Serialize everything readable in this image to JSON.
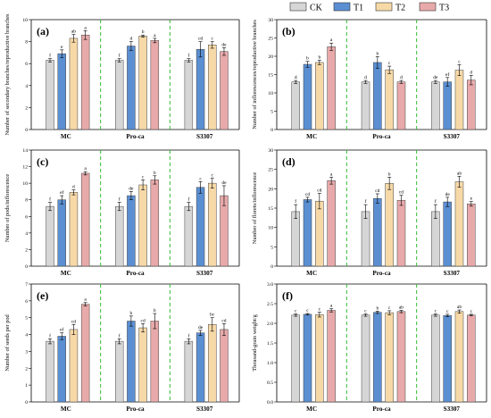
{
  "legend": {
    "items": [
      {
        "name": "CK",
        "color": "#d6d6d6"
      },
      {
        "name": "T1",
        "color": "#5b8fd2"
      },
      {
        "name": "T2",
        "color": "#f7d9a8"
      },
      {
        "name": "T3",
        "color": "#e8a9aa"
      }
    ]
  },
  "colors": {
    "divider": "#33bb33",
    "axis": "#000000",
    "error_bar": "#000000"
  },
  "chart_data": [
    {
      "type": "bar",
      "panel_label": "(a)",
      "ylabel": "Number of secondary branches/reproductive branches",
      "ylim": [
        0,
        10
      ],
      "yticks": [
        0,
        2,
        4,
        6,
        8,
        10
      ],
      "categories": [
        "MC",
        "Pro-ca",
        "S3307"
      ],
      "series": [
        {
          "name": "CK",
          "values": [
            6.3,
            6.3,
            6.3
          ],
          "errors": [
            0.15,
            0.15,
            0.15
          ],
          "letters": [
            "f",
            "f",
            "f"
          ]
        },
        {
          "name": "T1",
          "values": [
            6.9,
            7.6,
            7.3
          ],
          "errors": [
            0.35,
            0.4,
            0.7
          ],
          "letters": [
            "e",
            "d",
            "cd"
          ]
        },
        {
          "name": "T2",
          "values": [
            8.3,
            8.5,
            7.7
          ],
          "errors": [
            0.35,
            0.1,
            0.3
          ],
          "letters": [
            "ab",
            "b",
            "c"
          ]
        },
        {
          "name": "T3",
          "values": [
            8.6,
            8.1,
            7.1
          ],
          "errors": [
            0.4,
            0.2,
            0.35
          ],
          "letters": [
            "a",
            "a",
            "de"
          ]
        }
      ]
    },
    {
      "type": "bar",
      "panel_label": "(b)",
      "ylabel": "Number of inflorescences/reproductive branches",
      "ylim": [
        0,
        30
      ],
      "yticks": [
        0,
        5,
        10,
        15,
        20,
        25,
        30
      ],
      "categories": [
        "MC",
        "Pro-ca",
        "S3307"
      ],
      "series": [
        {
          "name": "CK",
          "values": [
            13.0,
            13.0,
            13.0
          ],
          "errors": [
            0.4,
            0.4,
            0.4
          ],
          "letters": [
            "d",
            "d",
            "de"
          ]
        },
        {
          "name": "T1",
          "values": [
            17.8,
            18.3,
            13.0
          ],
          "errors": [
            0.8,
            1.6,
            1.2
          ],
          "letters": [
            "b",
            "b",
            "ef"
          ]
        },
        {
          "name": "T2",
          "values": [
            18.3,
            16.3,
            16.2
          ],
          "errors": [
            0.6,
            1.0,
            1.5
          ],
          "letters": [
            "b",
            "c",
            "c"
          ]
        },
        {
          "name": "T3",
          "values": [
            22.6,
            13.0,
            13.5
          ],
          "errors": [
            1.0,
            0.4,
            1.3
          ],
          "letters": [
            "a",
            "d",
            "d"
          ]
        }
      ]
    },
    {
      "type": "bar",
      "panel_label": "(c)",
      "ylabel": "Number of pods/inflorescence",
      "ylim": [
        0,
        14
      ],
      "yticks": [
        0,
        2,
        4,
        6,
        8,
        10,
        12,
        14
      ],
      "categories": [
        "MC",
        "Pro-ca",
        "S3307"
      ],
      "series": [
        {
          "name": "CK",
          "values": [
            7.2,
            7.2,
            7.2
          ],
          "errors": [
            0.5,
            0.5,
            0.5
          ],
          "letters": [
            "f",
            "f",
            "f"
          ]
        },
        {
          "name": "T1",
          "values": [
            8.0,
            8.5,
            9.5
          ],
          "errors": [
            0.5,
            0.5,
            0.7
          ],
          "letters": [
            "ef",
            "de",
            "c"
          ]
        },
        {
          "name": "T2",
          "values": [
            8.9,
            9.8,
            10.0
          ],
          "errors": [
            0.3,
            0.6,
            0.6
          ],
          "letters": [
            "d",
            "c",
            "c"
          ]
        },
        {
          "name": "T3",
          "values": [
            11.2,
            10.4,
            8.5
          ],
          "errors": [
            0.2,
            0.5,
            1.2
          ],
          "letters": [
            "a",
            "b",
            "de"
          ]
        }
      ]
    },
    {
      "type": "bar",
      "panel_label": "(d)",
      "ylabel": "Number of florets/inflorescence",
      "ylim": [
        0,
        30
      ],
      "yticks": [
        0,
        5,
        10,
        15,
        20,
        25,
        30
      ],
      "categories": [
        "MC",
        "Pro-ca",
        "S3307"
      ],
      "series": [
        {
          "name": "CK",
          "values": [
            14.1,
            14.1,
            14.1
          ],
          "errors": [
            1.8,
            1.8,
            1.8
          ],
          "letters": [
            "f",
            "f",
            "f"
          ]
        },
        {
          "name": "T1",
          "values": [
            17.2,
            17.5,
            16.6
          ],
          "errors": [
            0.6,
            1.2,
            1.2
          ],
          "letters": [
            "cd",
            "cd",
            "de"
          ]
        },
        {
          "name": "T2",
          "values": [
            16.8,
            21.4,
            21.8
          ],
          "errors": [
            2.0,
            1.6,
            1.4
          ],
          "letters": [
            "cd",
            "b",
            "ab"
          ]
        },
        {
          "name": "T3",
          "values": [
            22.1,
            17.0,
            16.1
          ],
          "errors": [
            0.9,
            1.3,
            0.6
          ],
          "letters": [
            "a",
            "cd",
            "e"
          ]
        }
      ]
    },
    {
      "type": "bar",
      "panel_label": "(e)",
      "ylabel": "Number of seeds per pod",
      "ylim": [
        0,
        7
      ],
      "yticks": [
        0,
        1,
        2,
        3,
        4,
        5,
        6,
        7
      ],
      "categories": [
        "MC",
        "Pro-ca",
        "S3307"
      ],
      "series": [
        {
          "name": "CK",
          "values": [
            3.6,
            3.6,
            3.6
          ],
          "errors": [
            0.15,
            0.15,
            0.15
          ],
          "letters": [
            "f",
            "f",
            "f"
          ]
        },
        {
          "name": "T1",
          "values": [
            3.9,
            4.8,
            4.1
          ],
          "errors": [
            0.2,
            0.3,
            0.15
          ],
          "letters": [
            "ef",
            "b",
            "de"
          ]
        },
        {
          "name": "T2",
          "values": [
            4.3,
            4.4,
            4.6
          ],
          "errors": [
            0.3,
            0.25,
            0.4
          ],
          "letters": [
            "cd",
            "cd",
            "bc"
          ]
        },
        {
          "name": "T3",
          "values": [
            5.8,
            4.8,
            4.3
          ],
          "errors": [
            0.1,
            0.45,
            0.35
          ],
          "letters": [
            "a",
            "b",
            "cd"
          ]
        }
      ]
    },
    {
      "type": "bar",
      "panel_label": "(f)",
      "ylabel": "Thousand-grain weight/g",
      "ylim": [
        0,
        3.0
      ],
      "yticks": [
        0.0,
        0.5,
        1.0,
        1.5,
        2.0,
        2.5,
        3.0
      ],
      "categories": [
        "MC",
        "Pro-ca",
        "S3307"
      ],
      "series": [
        {
          "name": "CK",
          "values": [
            2.21,
            2.21,
            2.21
          ],
          "errors": [
            0.03,
            0.03,
            0.03
          ],
          "letters": [
            "c",
            "c",
            "c"
          ]
        },
        {
          "name": "T1",
          "values": [
            2.23,
            2.28,
            2.2
          ],
          "errors": [
            0.02,
            0.03,
            0.03
          ],
          "letters": [
            "c",
            "b",
            "c"
          ]
        },
        {
          "name": "T2",
          "values": [
            2.22,
            2.27,
            2.3
          ],
          "errors": [
            0.06,
            0.05,
            0.04
          ],
          "letters": [
            "c",
            "c",
            "ab"
          ]
        },
        {
          "name": "T3",
          "values": [
            2.33,
            2.3,
            2.21
          ],
          "errors": [
            0.04,
            0.03,
            0.02
          ],
          "letters": [
            "a",
            "ab",
            "c"
          ]
        }
      ]
    }
  ]
}
